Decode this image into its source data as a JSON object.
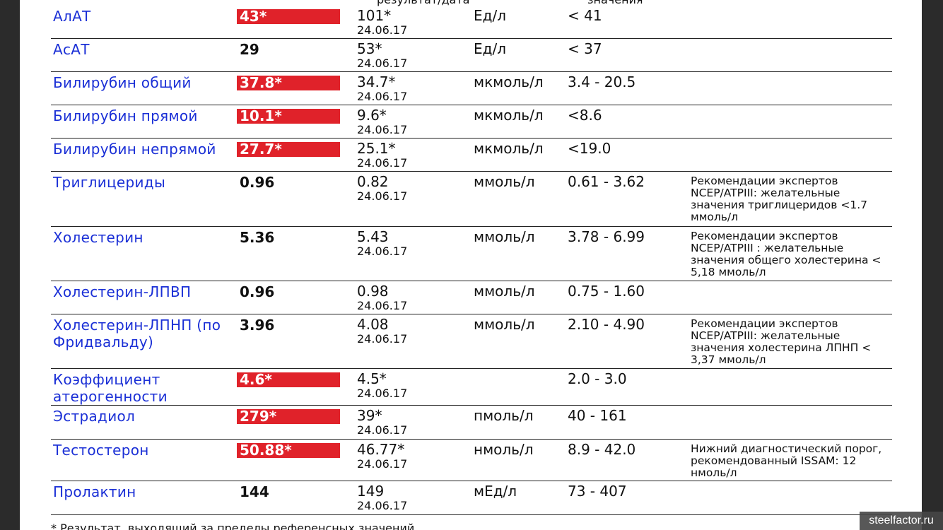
{
  "header": {
    "col_prev_partial": "результат/дата",
    "col_ref_partial": "значения"
  },
  "rows": [
    {
      "name": "АлАТ",
      "result": "43*",
      "flag": true,
      "prev_value": "101*",
      "prev_date": "24.06.17",
      "unit": "Ед/л",
      "ref": "< 41",
      "note": ""
    },
    {
      "name": "АсАТ",
      "result": "29",
      "flag": false,
      "prev_value": "53*",
      "prev_date": "24.06.17",
      "unit": "Ед/л",
      "ref": "< 37",
      "note": ""
    },
    {
      "name": "Билирубин общий",
      "result": "37.8*",
      "flag": true,
      "prev_value": "34.7*",
      "prev_date": "24.06.17",
      "unit": "мкмоль/л",
      "ref": "3.4 - 20.5",
      "note": ""
    },
    {
      "name": "Билирубин прямой",
      "result": "10.1*",
      "flag": true,
      "prev_value": "9.6*",
      "prev_date": "24.06.17",
      "unit": "мкмоль/л",
      "ref": "<8.6",
      "note": ""
    },
    {
      "name": "Билирубин непрямой",
      "result": "27.7*",
      "flag": true,
      "prev_value": "25.1*",
      "prev_date": "24.06.17",
      "unit": "мкмоль/л",
      "ref": "<19.0",
      "note": ""
    },
    {
      "name": "Триглицериды",
      "result": "0.96",
      "flag": false,
      "prev_value": "0.82",
      "prev_date": "24.06.17",
      "unit": "ммоль/л",
      "ref": "0.61 - 3.62",
      "note": "Рекомендации экспертов NCEP/ATPIII: желательные значения триглицеридов <1.7 ммоль/л"
    },
    {
      "name": "Холестерин",
      "result": "5.36",
      "flag": false,
      "prev_value": "5.43",
      "prev_date": "24.06.17",
      "unit": "ммоль/л",
      "ref": "3.78 - 6.99",
      "note": "Рекомендации экспертов NCEP/ATPIII : желательные значения общего холестерина < 5,18 ммоль/л"
    },
    {
      "name": "Холестерин-ЛПВП",
      "result": "0.96",
      "flag": false,
      "prev_value": "0.98",
      "prev_date": "24.06.17",
      "unit": "ммоль/л",
      "ref": "0.75 - 1.60",
      "note": ""
    },
    {
      "name": "Холестерин-ЛПНП (по Фридвальду)",
      "result": "3.96",
      "flag": false,
      "prev_value": "4.08",
      "prev_date": "24.06.17",
      "unit": "ммоль/л",
      "ref": "2.10 - 4.90",
      "note": "Рекомендации экспертов NCEP/ATPIII: желательные значения холестерина ЛПНП < 3,37 ммоль/л"
    },
    {
      "name": "Коэффициент атерогенности",
      "result": "4.6*",
      "flag": true,
      "prev_value": "4.5*",
      "prev_date": "24.06.17",
      "unit": "",
      "ref": "2.0 - 3.0",
      "note": ""
    },
    {
      "name": "Эстрадиол",
      "result": "279*",
      "flag": true,
      "prev_value": "39*",
      "prev_date": "24.06.17",
      "unit": "пмоль/л",
      "ref": "40 - 161",
      "note": ""
    },
    {
      "name": "Тестостерон",
      "result": "50.88*",
      "flag": true,
      "prev_value": "46.77*",
      "prev_date": "24.06.17",
      "unit": "нмоль/л",
      "ref": "8.9 - 42.0",
      "note": "Нижний диагностический порог, рекомендованный ISSAM: 12 нмоль/л"
    },
    {
      "name": "Пролактин",
      "result": "144",
      "flag": false,
      "prev_value": "149",
      "prev_date": "24.06.17",
      "unit": "мЕд/л",
      "ref": "73 - 407",
      "note": ""
    }
  ],
  "footnote": "* Результат, выходящий за пределы референсных значений",
  "watermark": "steelfactor.ru",
  "colors": {
    "flag_bg": "#e0222a",
    "name_text": "#1a2fd6"
  }
}
